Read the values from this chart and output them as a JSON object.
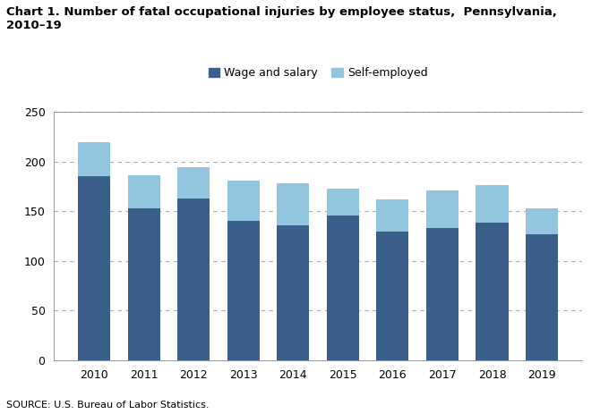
{
  "years": [
    "2010",
    "2011",
    "2012",
    "2013",
    "2014",
    "2015",
    "2016",
    "2017",
    "2018",
    "2019"
  ],
  "wage_salary": [
    185,
    153,
    163,
    140,
    136,
    146,
    129,
    133,
    138,
    127
  ],
  "self_employed": [
    34,
    33,
    31,
    41,
    42,
    27,
    33,
    38,
    38,
    26
  ],
  "wage_color": "#3a5f8a",
  "self_color": "#92c5de",
  "title_line1": "Chart 1. Number of fatal occupational injuries by employee status,  Pennsylvania,",
  "title_line2": "2010–19",
  "legend_wage": "Wage and salary",
  "legend_self": "Self-employed",
  "source": "SOURCE: U.S. Bureau of Labor Statistics.",
  "ylim": [
    0,
    250
  ],
  "yticks": [
    0,
    50,
    100,
    150,
    200,
    250
  ],
  "grid_color": "#b0b0b0",
  "background_color": "#ffffff",
  "bar_width": 0.65,
  "title_fontsize": 9.5,
  "tick_fontsize": 9,
  "source_fontsize": 8,
  "legend_fontsize": 9
}
